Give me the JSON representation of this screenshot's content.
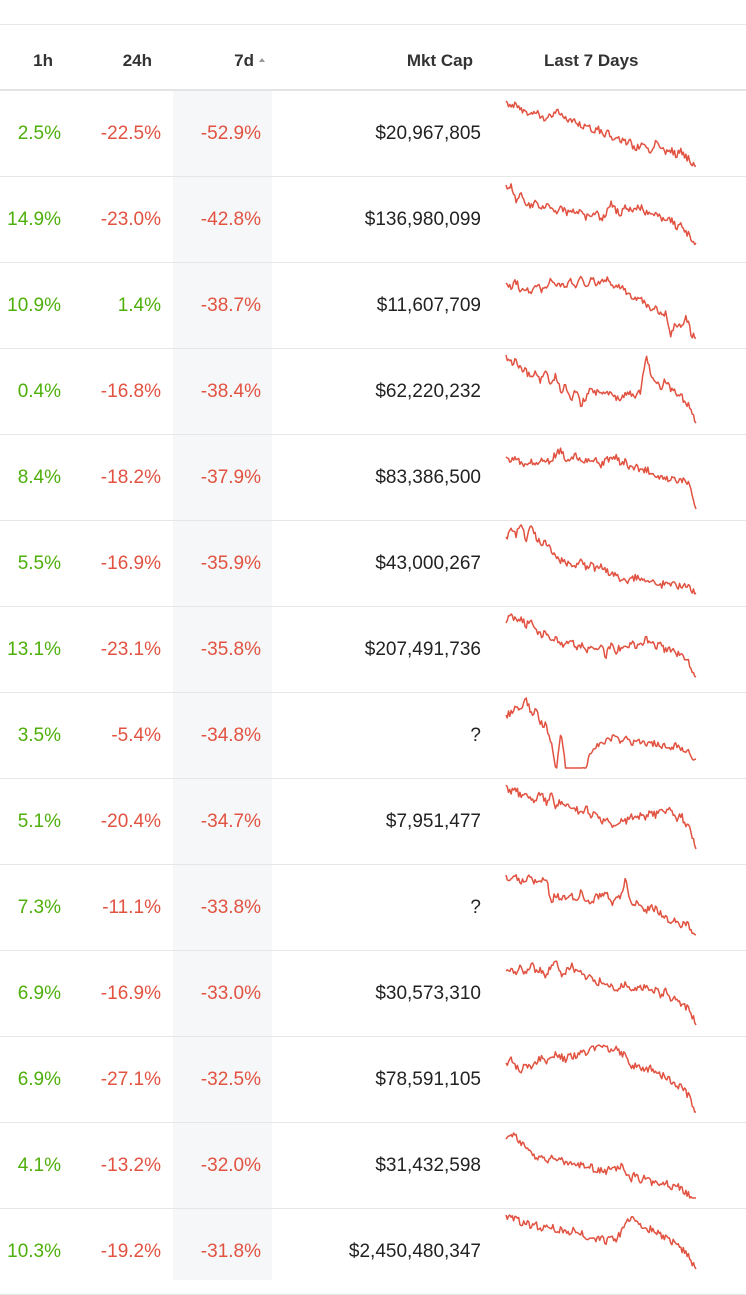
{
  "colors": {
    "positive": "#4eaf0a",
    "negative": "#e15241",
    "sparkline": "#e15241",
    "sorted_column_bg": "#f6f7f8"
  },
  "header": {
    "col_1h": "1h",
    "col_24h": "24h",
    "col_7d": "7d",
    "col_mkt_cap": "Mkt Cap",
    "col_last7": "Last 7 Days",
    "sort_indicator": "sort-ascending-icon"
  },
  "rows": [
    {
      "h1": "2.5%",
      "h24": "-22.5%",
      "d7": "-52.9%",
      "mkt_cap": "$20,967,805",
      "h24_dir": "neg",
      "spark": [
        10,
        16,
        14,
        20,
        22,
        25,
        21,
        28,
        26,
        24,
        18,
        26,
        30,
        28,
        33,
        36,
        34,
        40,
        38,
        44,
        42,
        48,
        46,
        52,
        50,
        58,
        56,
        54,
        60,
        52,
        55,
        62,
        58,
        64,
        60,
        66,
        70,
        75
      ]
    },
    {
      "h1": "14.9%",
      "h24": "-23.0%",
      "d7": "-42.8%",
      "mkt_cap": "$136,980,099",
      "h24_dir": "neg",
      "spark": [
        8,
        10,
        25,
        18,
        28,
        30,
        26,
        32,
        28,
        30,
        34,
        30,
        36,
        32,
        38,
        34,
        40,
        38,
        36,
        42,
        38,
        26,
        34,
        36,
        30,
        34,
        32,
        30,
        36,
        34,
        38,
        40,
        44,
        42,
        50,
        48,
        56,
        60,
        66
      ]
    },
    {
      "h1": "10.9%",
      "h24": "1.4%",
      "d7": "-38.7%",
      "mkt_cap": "$11,607,709",
      "h24_dir": "pos",
      "spark": [
        20,
        26,
        18,
        30,
        24,
        34,
        20,
        28,
        22,
        18,
        24,
        20,
        26,
        18,
        22,
        16,
        24,
        14,
        22,
        18,
        16,
        20,
        24,
        22,
        30,
        34,
        38,
        36,
        42,
        46,
        44,
        52,
        50,
        72,
        60,
        66,
        54,
        70,
        76
      ]
    },
    {
      "h1": "0.4%",
      "h24": "-16.8%",
      "d7": "-38.4%",
      "mkt_cap": "$62,220,232",
      "h24_dir": "neg",
      "spark": [
        6,
        14,
        12,
        20,
        22,
        30,
        24,
        32,
        20,
        38,
        26,
        44,
        36,
        52,
        42,
        56,
        48,
        40,
        44,
        42,
        46,
        44,
        50,
        48,
        46,
        44,
        48,
        42,
        6,
        26,
        34,
        38,
        30,
        40,
        44,
        46,
        56,
        58,
        74
      ]
    },
    {
      "h1": "8.4%",
      "h24": "-18.2%",
      "d7": "-37.9%",
      "mkt_cap": "$83,386,500",
      "h24_dir": "neg",
      "spark": [
        22,
        26,
        24,
        28,
        30,
        26,
        30,
        24,
        28,
        24,
        20,
        14,
        28,
        22,
        20,
        26,
        24,
        28,
        26,
        30,
        24,
        26,
        22,
        28,
        26,
        34,
        32,
        36,
        34,
        38,
        42,
        40,
        44,
        42,
        46,
        44,
        48,
        52,
        74
      ]
    },
    {
      "h1": "5.5%",
      "h24": "-16.9%",
      "d7": "-35.9%",
      "mkt_cap": "$43,000,267",
      "h24_dir": "neg",
      "spark": [
        16,
        10,
        14,
        4,
        20,
        6,
        16,
        24,
        20,
        30,
        34,
        40,
        42,
        46,
        44,
        40,
        46,
        44,
        48,
        46,
        50,
        52,
        54,
        58,
        62,
        58,
        56,
        58,
        60,
        60,
        62,
        64,
        62,
        62,
        64,
        66,
        66,
        68,
        72
      ]
    },
    {
      "h1": "13.1%",
      "h24": "-23.1%",
      "d7": "-35.8%",
      "mkt_cap": "$207,491,736",
      "h24_dir": "neg",
      "spark": [
        16,
        6,
        14,
        10,
        18,
        14,
        22,
        28,
        26,
        34,
        30,
        38,
        36,
        34,
        40,
        38,
        44,
        36,
        42,
        40,
        48,
        38,
        44,
        40,
        42,
        36,
        40,
        38,
        32,
        36,
        40,
        38,
        44,
        42,
        48,
        46,
        52,
        60,
        70
      ]
    },
    {
      "h1": "3.5%",
      "h24": "-5.4%",
      "d7": "-34.8%",
      "mkt_cap": "?",
      "h24_dir": "neg",
      "spark": [
        22,
        20,
        14,
        16,
        6,
        20,
        18,
        30,
        32,
        48,
        80,
        40,
        78,
        82,
        78,
        78,
        76,
        58,
        54,
        50,
        48,
        46,
        44,
        48,
        46,
        50,
        48,
        50,
        52,
        50,
        50,
        52,
        52,
        54,
        52,
        56,
        58,
        62,
        66
      ]
    },
    {
      "h1": "5.1%",
      "h24": "-20.4%",
      "d7": "-34.7%",
      "mkt_cap": "$7,951,477",
      "h24_dir": "neg",
      "spark": [
        6,
        14,
        10,
        18,
        14,
        22,
        20,
        14,
        24,
        16,
        28,
        22,
        26,
        32,
        30,
        34,
        28,
        38,
        32,
        42,
        40,
        46,
        44,
        40,
        42,
        38,
        40,
        36,
        38,
        34,
        36,
        30,
        34,
        28,
        42,
        36,
        46,
        52,
        70
      ]
    },
    {
      "h1": "7.3%",
      "h24": "-11.1%",
      "d7": "-33.8%",
      "mkt_cap": "?",
      "h24_dir": "neg",
      "spark": [
        10,
        16,
        12,
        18,
        14,
        12,
        18,
        16,
        12,
        36,
        30,
        34,
        32,
        30,
        36,
        28,
        34,
        38,
        32,
        30,
        26,
        40,
        34,
        30,
        12,
        40,
        38,
        40,
        46,
        42,
        44,
        48,
        52,
        56,
        54,
        60,
        58,
        64,
        70
      ]
    },
    {
      "h1": "6.9%",
      "h24": "-16.9%",
      "d7": "-33.0%",
      "mkt_cap": "$30,573,310",
      "h24_dir": "neg",
      "spark": [
        20,
        16,
        24,
        14,
        26,
        12,
        22,
        18,
        26,
        14,
        10,
        24,
        20,
        14,
        22,
        18,
        30,
        26,
        34,
        28,
        36,
        32,
        38,
        34,
        32,
        40,
        36,
        38,
        34,
        42,
        38,
        44,
        40,
        48,
        46,
        52,
        56,
        62,
        74
      ]
    },
    {
      "h1": "6.9%",
      "h24": "-27.1%",
      "d7": "-32.5%",
      "mkt_cap": "$78,591,105",
      "h24_dir": "neg",
      "spark": [
        26,
        22,
        30,
        34,
        28,
        32,
        26,
        20,
        24,
        22,
        16,
        20,
        22,
        18,
        20,
        14,
        16,
        12,
        10,
        12,
        10,
        14,
        12,
        16,
        18,
        30,
        28,
        32,
        34,
        30,
        36,
        38,
        40,
        44,
        48,
        50,
        56,
        62,
        80
      ]
    },
    {
      "h1": "4.1%",
      "h24": "-13.2%",
      "d7": "-32.0%",
      "mkt_cap": "$31,432,598",
      "h24_dir": "neg",
      "spark": [
        16,
        10,
        14,
        20,
        24,
        28,
        36,
        32,
        38,
        34,
        40,
        36,
        42,
        38,
        44,
        42,
        46,
        44,
        48,
        46,
        50,
        44,
        48,
        42,
        52,
        56,
        50,
        58,
        54,
        60,
        58,
        62,
        60,
        64,
        62,
        66,
        70,
        74,
        80
      ]
    },
    {
      "h1": "10.3%",
      "h24": "-19.2%",
      "d7": "-31.8%",
      "mkt_cap": "$2,450,480,347",
      "h24_dir": "neg",
      "spark": [
        6,
        10,
        8,
        14,
        12,
        18,
        16,
        20,
        18,
        16,
        22,
        20,
        24,
        22,
        20,
        24,
        28,
        26,
        30,
        28,
        32,
        28,
        30,
        24,
        14,
        10,
        12,
        16,
        22,
        20,
        24,
        26,
        28,
        32,
        34,
        40,
        44,
        52,
        60
      ]
    }
  ]
}
